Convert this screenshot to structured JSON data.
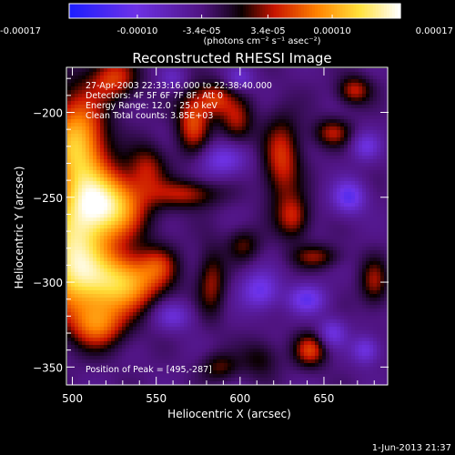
{
  "chart_data": {
    "type": "heatmap",
    "title": "Reconstructed RHESSI Image",
    "xlabel": "Heliocentric X (arcsec)",
    "ylabel": "Heliocentric Y (arcsec)",
    "xlim": [
      497,
      688
    ],
    "ylim": [
      -360,
      -174
    ],
    "x_ticks": [
      {
        "value": 500,
        "label": "500"
      },
      {
        "value": 550,
        "label": "550"
      },
      {
        "value": 600,
        "label": "600"
      },
      {
        "value": 650,
        "label": "650"
      }
    ],
    "y_ticks": [
      {
        "value": -200,
        "label": "-200"
      },
      {
        "value": -250,
        "label": "-250"
      },
      {
        "value": -300,
        "label": "-300"
      },
      {
        "value": -350,
        "label": "-350"
      }
    ],
    "colorbar": {
      "range": [
        -0.00017,
        0.00017
      ],
      "ticks": [
        {
          "value": -0.00017,
          "label": "-0.00017"
        },
        {
          "value": -0.0001,
          "label": "-0.00010"
        },
        {
          "value": -3.4e-05,
          "label": "-3.4e-05"
        },
        {
          "value": 3.4e-05,
          "label": "3.4e-05"
        },
        {
          "value": 0.0001,
          "label": "0.00010"
        },
        {
          "value": 0.00017,
          "label": "0.00017"
        }
      ],
      "unit_label": "(photons cm⁻² s⁻¹ asec⁻²)"
    },
    "annotations": [
      "27-Apr-2003 22:33:16.000 to 22:38:40.000",
      "Detectors: 4F 5F 6F 7F 8F, Att 0",
      "Energy Range: 12.0 - 25.0 keV",
      "Clean     Total counts: 3.85E+03"
    ],
    "peak_label": "Position of Peak = [495,-287]",
    "peak": {
      "x": 495,
      "y": -287
    },
    "blobs": [
      {
        "x": 503,
        "y": -220,
        "sx": 12,
        "sy": 22,
        "a": 0.9
      },
      {
        "x": 520,
        "y": -255,
        "sx": 16,
        "sy": 14,
        "a": 1.0
      },
      {
        "x": 500,
        "y": -287,
        "sx": 14,
        "sy": 20,
        "a": 1.0
      },
      {
        "x": 530,
        "y": -300,
        "sx": 16,
        "sy": 12,
        "a": 0.85
      },
      {
        "x": 515,
        "y": -325,
        "sx": 12,
        "sy": 10,
        "a": 0.6
      },
      {
        "x": 525,
        "y": -180,
        "sx": 10,
        "sy": 9,
        "a": 0.5
      },
      {
        "x": 545,
        "y": -232,
        "sx": 8,
        "sy": 10,
        "a": 0.35
      },
      {
        "x": 572,
        "y": -205,
        "sx": 7,
        "sy": 13,
        "a": 0.55
      },
      {
        "x": 585,
        "y": -192,
        "sx": 7,
        "sy": 7,
        "a": 0.45
      },
      {
        "x": 598,
        "y": -205,
        "sx": 7,
        "sy": 10,
        "a": 0.4
      },
      {
        "x": 568,
        "y": -248,
        "sx": 14,
        "sy": 6,
        "a": 0.42
      },
      {
        "x": 583,
        "y": -300,
        "sx": 6,
        "sy": 14,
        "a": 0.38
      },
      {
        "x": 602,
        "y": -278,
        "sx": 7,
        "sy": 7,
        "a": 0.3
      },
      {
        "x": 625,
        "y": -228,
        "sx": 8,
        "sy": 18,
        "a": 0.5
      },
      {
        "x": 632,
        "y": -262,
        "sx": 7,
        "sy": 9,
        "a": 0.42
      },
      {
        "x": 645,
        "y": -285,
        "sx": 10,
        "sy": 5,
        "a": 0.35
      },
      {
        "x": 642,
        "y": -340,
        "sx": 7,
        "sy": 7,
        "a": 0.5
      },
      {
        "x": 655,
        "y": -212,
        "sx": 8,
        "sy": 6,
        "a": 0.4
      },
      {
        "x": 668,
        "y": -187,
        "sx": 7,
        "sy": 6,
        "a": 0.45
      },
      {
        "x": 680,
        "y": -300,
        "sx": 6,
        "sy": 10,
        "a": 0.38
      },
      {
        "x": 612,
        "y": -345,
        "sx": 8,
        "sy": 8,
        "a": 0.25
      },
      {
        "x": 552,
        "y": -290,
        "sx": 8,
        "sy": 8,
        "a": 0.3
      },
      {
        "x": 588,
        "y": -350,
        "sx": 8,
        "sy": 6,
        "a": 0.3
      },
      {
        "x": 560,
        "y": -320,
        "sx": 8,
        "sy": 6,
        "a": -0.35
      },
      {
        "x": 590,
        "y": -228,
        "sx": 10,
        "sy": 7,
        "a": -0.4
      },
      {
        "x": 612,
        "y": -305,
        "sx": 8,
        "sy": 8,
        "a": -0.45
      },
      {
        "x": 640,
        "y": -310,
        "sx": 8,
        "sy": 6,
        "a": -0.45
      },
      {
        "x": 665,
        "y": -250,
        "sx": 7,
        "sy": 7,
        "a": -0.5
      },
      {
        "x": 675,
        "y": -340,
        "sx": 6,
        "sy": 6,
        "a": -0.4
      },
      {
        "x": 655,
        "y": -330,
        "sx": 6,
        "sy": 6,
        "a": -0.38
      },
      {
        "x": 675,
        "y": -220,
        "sx": 6,
        "sy": 6,
        "a": -0.35
      },
      {
        "x": 600,
        "y": -180,
        "sx": 6,
        "sy": 5,
        "a": -0.3
      },
      {
        "x": 560,
        "y": -180,
        "sx": 6,
        "sy": 5,
        "a": -0.25
      }
    ]
  },
  "footer": {
    "timestamp": "1-Jun-2013 21:37"
  }
}
